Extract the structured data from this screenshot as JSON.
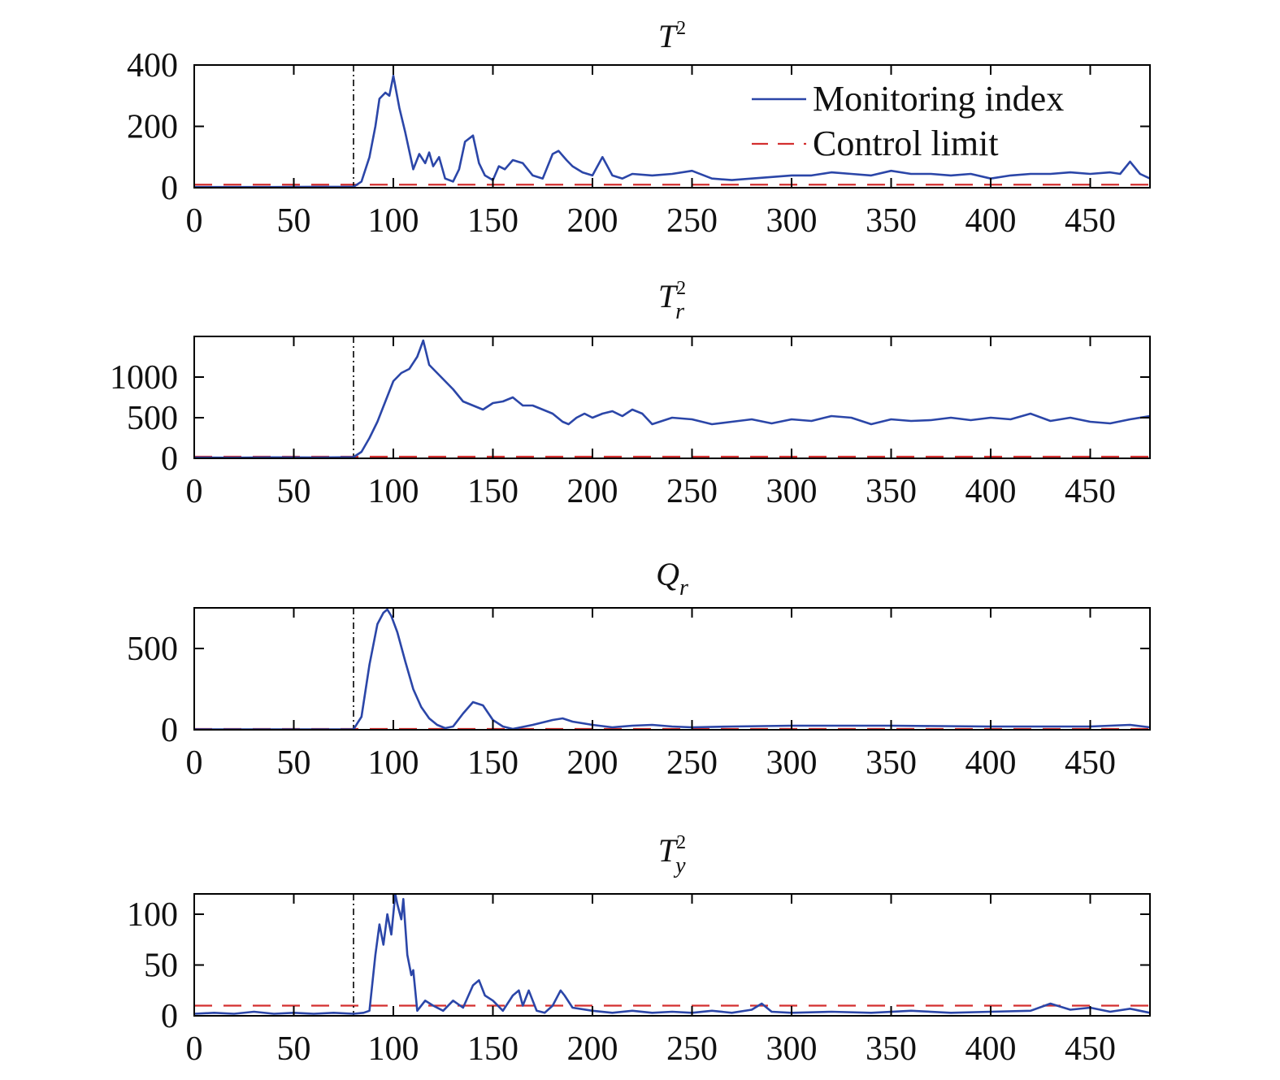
{
  "legend": {
    "monitoring_label": "Monitoring index",
    "limit_label": "Control limit"
  },
  "colors": {
    "monitoring": "#2b46a8",
    "limit": "#d32f2f",
    "fault_line": "#000000",
    "axes": "#000000"
  },
  "chart_data": [
    {
      "type": "line",
      "title": {
        "main": "T",
        "sup": "2",
        "sub": ""
      },
      "xlabel": "",
      "ylabel": "",
      "xlim": [
        0,
        480
      ],
      "ylim": [
        0,
        400
      ],
      "xticks": [
        0,
        50,
        100,
        150,
        200,
        250,
        300,
        350,
        400,
        450
      ],
      "yticks": [
        0,
        200,
        400
      ],
      "grid": false,
      "legend_position": "top-right",
      "fault_onset_x": 80,
      "control_limit": 10,
      "series": [
        {
          "name": "Monitoring index",
          "x": [
            0,
            20,
            40,
            60,
            80,
            84,
            88,
            91,
            93,
            96,
            98,
            100,
            103,
            106,
            110,
            113,
            116,
            118,
            120,
            123,
            126,
            130,
            133,
            136,
            140,
            143,
            146,
            150,
            153,
            156,
            160,
            165,
            170,
            175,
            180,
            183,
            187,
            190,
            195,
            200,
            205,
            210,
            215,
            220,
            230,
            240,
            250,
            260,
            270,
            280,
            290,
            300,
            310,
            320,
            330,
            340,
            350,
            360,
            370,
            380,
            390,
            400,
            410,
            420,
            430,
            440,
            450,
            460,
            465,
            470,
            475,
            480
          ],
          "y": [
            2,
            2,
            2,
            3,
            3,
            20,
            100,
            200,
            290,
            310,
            300,
            365,
            260,
            180,
            60,
            110,
            80,
            115,
            70,
            100,
            30,
            20,
            60,
            150,
            170,
            80,
            40,
            25,
            70,
            60,
            90,
            80,
            40,
            30,
            110,
            120,
            90,
            70,
            50,
            40,
            100,
            40,
            30,
            45,
            40,
            45,
            55,
            30,
            25,
            30,
            35,
            40,
            40,
            50,
            45,
            40,
            55,
            45,
            45,
            40,
            45,
            30,
            40,
            45,
            45,
            50,
            45,
            50,
            45,
            85,
            45,
            30
          ]
        }
      ]
    },
    {
      "type": "line",
      "title": {
        "main": "T",
        "sup": "2",
        "sub": "r"
      },
      "xlabel": "",
      "ylabel": "",
      "xlim": [
        0,
        480
      ],
      "ylim": [
        0,
        1500
      ],
      "xticks": [
        0,
        50,
        100,
        150,
        200,
        250,
        300,
        350,
        400,
        450
      ],
      "yticks": [
        0,
        500,
        1000
      ],
      "grid": false,
      "fault_onset_x": 80,
      "control_limit": 20,
      "series": [
        {
          "name": "Monitoring index",
          "x": [
            0,
            20,
            40,
            60,
            80,
            84,
            88,
            92,
            96,
            100,
            104,
            108,
            112,
            115,
            118,
            122,
            126,
            130,
            135,
            140,
            145,
            150,
            155,
            160,
            165,
            170,
            175,
            180,
            185,
            188,
            192,
            196,
            200,
            205,
            210,
            215,
            220,
            225,
            230,
            240,
            250,
            260,
            270,
            280,
            290,
            300,
            310,
            320,
            330,
            340,
            350,
            360,
            370,
            380,
            390,
            400,
            410,
            420,
            430,
            440,
            450,
            460,
            470,
            480
          ],
          "y": [
            10,
            8,
            12,
            10,
            15,
            80,
            250,
            450,
            700,
            950,
            1050,
            1100,
            1250,
            1450,
            1150,
            1050,
            950,
            850,
            700,
            650,
            600,
            680,
            700,
            750,
            650,
            650,
            600,
            550,
            450,
            420,
            500,
            550,
            500,
            550,
            580,
            520,
            600,
            550,
            420,
            500,
            480,
            420,
            450,
            480,
            430,
            480,
            460,
            520,
            500,
            420,
            480,
            460,
            470,
            500,
            470,
            500,
            480,
            550,
            460,
            500,
            450,
            430,
            480,
            520
          ]
        }
      ]
    },
    {
      "type": "line",
      "title": {
        "main": "Q",
        "sup": "",
        "sub": "r"
      },
      "xlabel": "",
      "ylabel": "",
      "xlim": [
        0,
        480
      ],
      "ylim": [
        0,
        750
      ],
      "xticks": [
        0,
        50,
        100,
        150,
        200,
        250,
        300,
        350,
        400,
        450
      ],
      "yticks": [
        0,
        500
      ],
      "grid": false,
      "fault_onset_x": 80,
      "control_limit": 5,
      "series": [
        {
          "name": "Monitoring index",
          "x": [
            0,
            20,
            40,
            60,
            80,
            84,
            88,
            92,
            95,
            97,
            99,
            102,
            106,
            110,
            114,
            118,
            122,
            126,
            130,
            135,
            140,
            145,
            150,
            155,
            160,
            170,
            180,
            185,
            190,
            200,
            210,
            220,
            230,
            240,
            250,
            270,
            300,
            350,
            400,
            450,
            470,
            480
          ],
          "y": [
            2,
            2,
            2,
            2,
            3,
            80,
            400,
            650,
            720,
            740,
            700,
            600,
            420,
            250,
            140,
            70,
            30,
            10,
            20,
            100,
            170,
            150,
            60,
            20,
            5,
            30,
            60,
            70,
            50,
            30,
            15,
            25,
            30,
            20,
            15,
            20,
            25,
            25,
            20,
            20,
            30,
            15
          ]
        }
      ]
    },
    {
      "type": "line",
      "title": {
        "main": "T",
        "sup": "2",
        "sub": "y"
      },
      "xlabel": "",
      "ylabel": "",
      "xlim": [
        0,
        480
      ],
      "ylim": [
        0,
        120
      ],
      "xticks": [
        0,
        50,
        100,
        150,
        200,
        250,
        300,
        350,
        400,
        450
      ],
      "yticks": [
        0,
        50,
        100
      ],
      "grid": false,
      "fault_onset_x": 80,
      "control_limit": 10,
      "series": [
        {
          "name": "Monitoring index",
          "x": [
            0,
            10,
            20,
            30,
            40,
            50,
            60,
            70,
            80,
            85,
            88,
            91,
            93,
            95,
            97,
            99,
            101,
            102,
            104,
            105,
            107,
            109,
            110,
            112,
            116,
            120,
            125,
            130,
            135,
            140,
            143,
            146,
            150,
            155,
            160,
            163,
            165,
            168,
            172,
            176,
            180,
            184,
            186,
            190,
            200,
            210,
            220,
            230,
            240,
            250,
            260,
            270,
            280,
            285,
            290,
            300,
            320,
            340,
            360,
            380,
            400,
            420,
            430,
            440,
            450,
            460,
            470,
            480
          ],
          "y": [
            2,
            3,
            2,
            4,
            2,
            3,
            2,
            3,
            2,
            3,
            5,
            60,
            90,
            70,
            100,
            80,
            120,
            110,
            95,
            115,
            60,
            40,
            45,
            5,
            15,
            10,
            5,
            15,
            8,
            30,
            35,
            20,
            15,
            5,
            20,
            25,
            10,
            25,
            5,
            3,
            10,
            25,
            20,
            8,
            5,
            3,
            5,
            3,
            4,
            3,
            5,
            3,
            6,
            12,
            4,
            3,
            4,
            3,
            5,
            3,
            4,
            5,
            12,
            6,
            8,
            4,
            7,
            3
          ]
        }
      ]
    }
  ]
}
